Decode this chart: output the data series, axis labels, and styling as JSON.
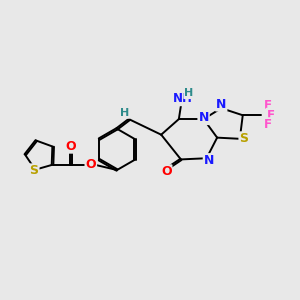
{
  "background_color": "#e8e8e8",
  "fig_size": [
    3.0,
    3.0
  ],
  "dpi": 100,
  "bond_color": "#000000",
  "bond_width": 1.4,
  "atom_colors": {
    "O": "#ff0000",
    "N": "#1a1aff",
    "S": "#b8a000",
    "F": "#ff55cc",
    "H_teal": "#2e8b8b"
  },
  "xlim": [
    0,
    10
  ],
  "ylim": [
    1,
    9
  ]
}
